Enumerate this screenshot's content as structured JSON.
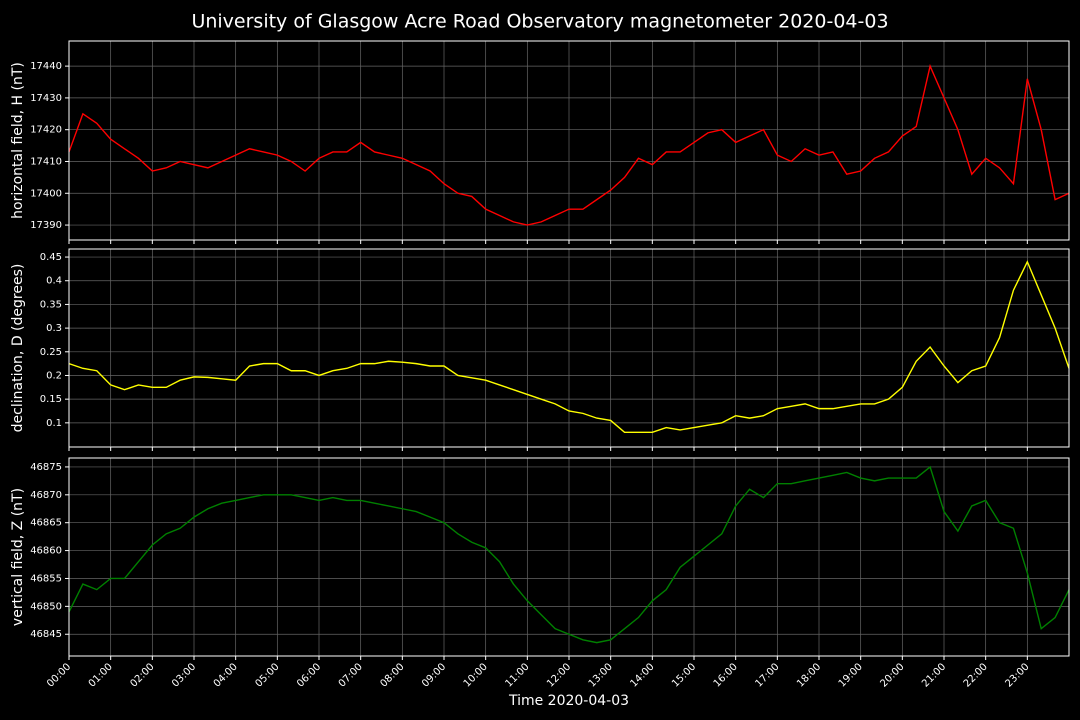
{
  "title": "University of Glasgow Acre Road Observatory magnetometer 2020-04-03",
  "chart_data": [
    {
      "type": "line",
      "ylabel": "horizontal field, H (nT)",
      "x": [
        0,
        0.3333,
        0.6667,
        1,
        1.3333,
        1.6667,
        2,
        2.3333,
        2.6667,
        3,
        3.3333,
        3.6667,
        4,
        4.3333,
        4.6667,
        5,
        5.3333,
        5.6667,
        6,
        6.3333,
        6.6667,
        7,
        7.3333,
        7.6667,
        8,
        8.3333,
        8.6667,
        9,
        9.3333,
        9.6667,
        10,
        10.3333,
        10.6667,
        11,
        11.3333,
        11.6667,
        12,
        12.3333,
        12.6667,
        13,
        13.3333,
        13.6667,
        14,
        14.3333,
        14.6667,
        15,
        15.3333,
        15.6667,
        16,
        16.3333,
        16.6667,
        17,
        17.3333,
        17.6667,
        18,
        18.3333,
        18.6667,
        19,
        19.3333,
        19.6667,
        20,
        20.3333,
        20.6667,
        21,
        21.3333,
        21.6667,
        22,
        22.3333,
        22.6667,
        23,
        23.3333,
        23.6667,
        24
      ],
      "series": [
        {
          "name": "H",
          "color": "#ff0000",
          "values": [
            17413,
            17425,
            17422,
            17417,
            17414,
            17411,
            17407,
            17408,
            17410,
            17409,
            17408,
            17410,
            17412,
            17414,
            17413,
            17412,
            17410,
            17407,
            17411,
            17413,
            17413,
            17416,
            17413,
            17412,
            17411,
            17409,
            17407,
            17403,
            17400,
            17399,
            17395,
            17393,
            17391,
            17390,
            17391,
            17393,
            17395,
            17395,
            17398,
            17401,
            17405,
            17411,
            17409,
            17413,
            17413,
            17416,
            17419,
            17420,
            17416,
            17418,
            17420,
            17412,
            17410,
            17414,
            17412,
            17413,
            17406,
            17407,
            17411,
            17413,
            17418,
            17421,
            17440,
            17430,
            17420,
            17406,
            17411,
            17408,
            17403,
            17436,
            17420,
            17398,
            17400
          ]
        }
      ],
      "xlim": [
        0,
        24
      ],
      "xticks": [
        0,
        1,
        2,
        3,
        4,
        5,
        6,
        7,
        8,
        9,
        10,
        11,
        12,
        13,
        14,
        15,
        16,
        17,
        18,
        19,
        20,
        21,
        22,
        23
      ],
      "ylim": [
        17385.3,
        17447.9
      ],
      "yticks": [
        17390,
        17400,
        17410,
        17420,
        17430,
        17440
      ],
      "grid": true
    },
    {
      "type": "line",
      "ylabel": "declination, D (degrees)",
      "x": [
        0,
        0.3333,
        0.6667,
        1,
        1.3333,
        1.6667,
        2,
        2.3333,
        2.6667,
        3,
        3.3333,
        3.6667,
        4,
        4.3333,
        4.6667,
        5,
        5.3333,
        5.6667,
        6,
        6.3333,
        6.6667,
        7,
        7.3333,
        7.6667,
        8,
        8.3333,
        8.6667,
        9,
        9.3333,
        9.6667,
        10,
        10.3333,
        10.6667,
        11,
        11.3333,
        11.6667,
        12,
        12.3333,
        12.6667,
        13,
        13.3333,
        13.6667,
        14,
        14.3333,
        14.6667,
        15,
        15.3333,
        15.6667,
        16,
        16.3333,
        16.6667,
        17,
        17.3333,
        17.6667,
        18,
        18.3333,
        18.6667,
        19,
        19.3333,
        19.6667,
        20,
        20.3333,
        20.6667,
        21,
        21.3333,
        21.6667,
        22,
        22.3333,
        22.6667,
        23,
        23.3333,
        23.6667,
        24
      ],
      "series": [
        {
          "name": "D",
          "color": "#ffff00",
          "values": [
            0.225,
            0.215,
            0.21,
            0.18,
            0.17,
            0.18,
            0.175,
            0.175,
            0.19,
            0.197,
            0.196,
            0.193,
            0.19,
            0.22,
            0.225,
            0.225,
            0.21,
            0.21,
            0.2,
            0.21,
            0.215,
            0.225,
            0.225,
            0.23,
            0.228,
            0.225,
            0.22,
            0.22,
            0.2,
            0.195,
            0.19,
            0.18,
            0.17,
            0.16,
            0.15,
            0.14,
            0.125,
            0.12,
            0.11,
            0.105,
            0.08,
            0.08,
            0.08,
            0.09,
            0.085,
            0.09,
            0.095,
            0.1,
            0.115,
            0.11,
            0.115,
            0.13,
            0.135,
            0.14,
            0.13,
            0.13,
            0.135,
            0.14,
            0.14,
            0.15,
            0.175,
            0.23,
            0.26,
            0.22,
            0.185,
            0.21,
            0.22,
            0.28,
            0.38,
            0.44,
            0.37,
            0.3,
            0.215
          ]
        }
      ],
      "xlim": [
        0,
        24
      ],
      "xticks": [
        0,
        1,
        2,
        3,
        4,
        5,
        6,
        7,
        8,
        9,
        10,
        11,
        12,
        13,
        14,
        15,
        16,
        17,
        18,
        19,
        20,
        21,
        22,
        23
      ],
      "ylim": [
        0.049,
        0.467
      ],
      "yticks": [
        0.1,
        0.15,
        0.2,
        0.25,
        0.3,
        0.35,
        0.4,
        0.45
      ],
      "grid": true
    },
    {
      "type": "line",
      "ylabel": "vertical field, Z (nT)",
      "xlabel": "Time 2020-04-03",
      "x": [
        0,
        0.3333,
        0.6667,
        1,
        1.3333,
        1.6667,
        2,
        2.3333,
        2.6667,
        3,
        3.3333,
        3.6667,
        4,
        4.3333,
        4.6667,
        5,
        5.3333,
        5.6667,
        6,
        6.3333,
        6.6667,
        7,
        7.3333,
        7.6667,
        8,
        8.3333,
        8.6667,
        9,
        9.3333,
        9.6667,
        10,
        10.3333,
        10.6667,
        11,
        11.3333,
        11.6667,
        12,
        12.3333,
        12.6667,
        13,
        13.3333,
        13.6667,
        14,
        14.3333,
        14.6667,
        15,
        15.3333,
        15.6667,
        16,
        16.3333,
        16.6667,
        17,
        17.3333,
        17.6667,
        18,
        18.3333,
        18.6667,
        19,
        19.3333,
        19.6667,
        20,
        20.3333,
        20.6667,
        21,
        21.3333,
        21.6667,
        22,
        22.3333,
        22.6667,
        23,
        23.3333,
        23.6667,
        24
      ],
      "series": [
        {
          "name": "Z",
          "color": "#008000",
          "values": [
            46849,
            46854,
            46853,
            46855,
            46855,
            46858,
            46861,
            46863,
            46864,
            46866,
            46867.5,
            46868.5,
            46869,
            46869.5,
            46870,
            46870,
            46870,
            46869.5,
            46869,
            46869.5,
            46869,
            46869,
            46868.5,
            46868,
            46867.5,
            46867,
            46866,
            46865,
            46863,
            46861.5,
            46860.5,
            46858,
            46854,
            46851,
            46848.5,
            46846,
            46845,
            46844,
            46843.5,
            46844,
            46846,
            46848,
            46851,
            46853,
            46857,
            46859,
            46861,
            46863,
            46868,
            46871,
            46869.5,
            46872,
            46872,
            46872.5,
            46873,
            46873.5,
            46874,
            46873,
            46872.5,
            46873,
            46873,
            46873,
            46875,
            46867,
            46863.5,
            46868,
            46869,
            46865,
            46864,
            46856,
            46846,
            46848,
            46853
          ]
        }
      ],
      "xlim": [
        0,
        24
      ],
      "xticks": [
        {
          "value": 0,
          "label": "00:00"
        },
        {
          "value": 1,
          "label": "01:00"
        },
        {
          "value": 2,
          "label": "02:00"
        },
        {
          "value": 3,
          "label": "03:00"
        },
        {
          "value": 4,
          "label": "04:00"
        },
        {
          "value": 5,
          "label": "05:00"
        },
        {
          "value": 6,
          "label": "06:00"
        },
        {
          "value": 7,
          "label": "07:00"
        },
        {
          "value": 8,
          "label": "08:00"
        },
        {
          "value": 9,
          "label": "09:00"
        },
        {
          "value": 10,
          "label": "10:00"
        },
        {
          "value": 11,
          "label": "11:00"
        },
        {
          "value": 12,
          "label": "12:00"
        },
        {
          "value": 13,
          "label": "13:00"
        },
        {
          "value": 14,
          "label": "14:00"
        },
        {
          "value": 15,
          "label": "15:00"
        },
        {
          "value": 16,
          "label": "16:00"
        },
        {
          "value": 17,
          "label": "17:00"
        },
        {
          "value": 18,
          "label": "18:00"
        },
        {
          "value": 19,
          "label": "19:00"
        },
        {
          "value": 20,
          "label": "20:00"
        },
        {
          "value": 21,
          "label": "21:00"
        },
        {
          "value": 22,
          "label": "22:00"
        },
        {
          "value": 23,
          "label": "23:00"
        }
      ],
      "ylim": [
        46841.1,
        46876.6
      ],
      "yticks": [
        46845,
        46850,
        46855,
        46860,
        46865,
        46870,
        46875
      ],
      "grid": true
    }
  ]
}
